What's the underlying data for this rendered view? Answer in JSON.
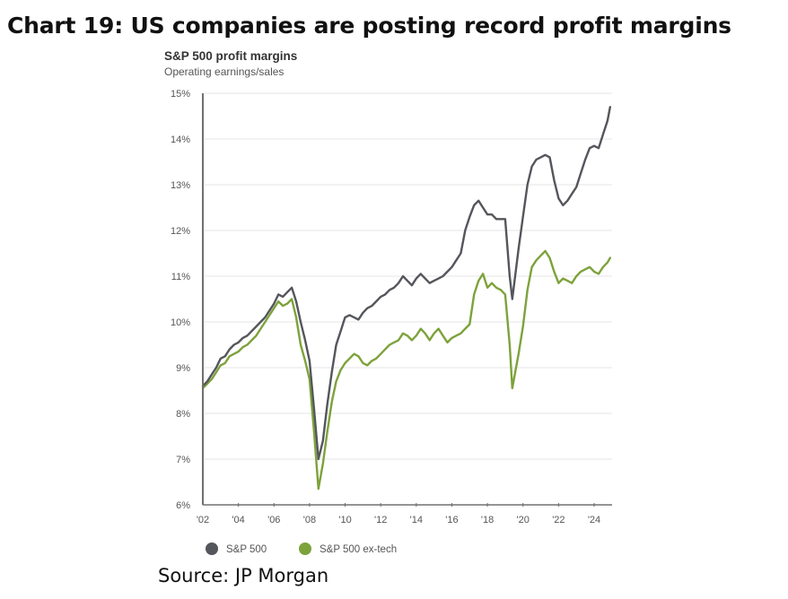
{
  "page": {
    "headline": "Chart 19: US companies are posting record profit margins",
    "source": "Source: JP Morgan"
  },
  "chart_data": {
    "type": "line",
    "title": "S&P 500 profit margins",
    "subtitle": "Operating earnings/sales",
    "xlabel": "",
    "ylabel": "",
    "xlim": [
      2002,
      2025
    ],
    "ylim": [
      6,
      15
    ],
    "grid": true,
    "legend_position": "bottom-left",
    "x_ticks": [
      2002,
      2004,
      2006,
      2008,
      2010,
      2012,
      2014,
      2016,
      2018,
      2020,
      2022,
      2024
    ],
    "x_tick_labels": [
      "'02",
      "'04",
      "'06",
      "'08",
      "'10",
      "'12",
      "'14",
      "'16",
      "'18",
      "'20",
      "'22",
      "'24"
    ],
    "y_ticks": [
      6,
      7,
      8,
      9,
      10,
      11,
      12,
      13,
      14,
      15
    ],
    "y_tick_labels": [
      "6%",
      "7%",
      "8%",
      "9%",
      "10%",
      "11%",
      "12%",
      "13%",
      "14%",
      "15%"
    ],
    "series": [
      {
        "name": "S&P 500",
        "color": "#54565b",
        "x": [
          2002.0,
          2002.25,
          2002.5,
          2002.75,
          2003.0,
          2003.25,
          2003.5,
          2003.75,
          2004.0,
          2004.25,
          2004.5,
          2004.75,
          2005.0,
          2005.25,
          2005.5,
          2005.75,
          2006.0,
          2006.25,
          2006.5,
          2006.75,
          2007.0,
          2007.25,
          2007.5,
          2007.75,
          2008.0,
          2008.25,
          2008.5,
          2008.75,
          2009.0,
          2009.25,
          2009.5,
          2009.75,
          2010.0,
          2010.25,
          2010.5,
          2010.75,
          2011.0,
          2011.25,
          2011.5,
          2011.75,
          2012.0,
          2012.25,
          2012.5,
          2012.75,
          2013.0,
          2013.25,
          2013.5,
          2013.75,
          2014.0,
          2014.25,
          2014.5,
          2014.75,
          2015.0,
          2015.25,
          2015.5,
          2015.75,
          2016.0,
          2016.25,
          2016.5,
          2016.75,
          2017.0,
          2017.25,
          2017.5,
          2017.75,
          2018.0,
          2018.25,
          2018.5,
          2018.75,
          2019.0,
          2019.25,
          2019.4,
          2019.75,
          2020.0,
          2020.25,
          2020.5,
          2020.75,
          2021.0,
          2021.25,
          2021.5,
          2021.75,
          2022.0,
          2022.25,
          2022.5,
          2022.75,
          2023.0,
          2023.25,
          2023.5,
          2023.75,
          2024.0,
          2024.25,
          2024.5,
          2024.75,
          2024.9
        ],
        "values": [
          8.6,
          8.7,
          8.85,
          9.0,
          9.2,
          9.25,
          9.4,
          9.5,
          9.55,
          9.65,
          9.7,
          9.8,
          9.9,
          10.0,
          10.1,
          10.25,
          10.4,
          10.6,
          10.55,
          10.65,
          10.75,
          10.45,
          10.0,
          9.6,
          9.15,
          8.1,
          7.0,
          7.4,
          8.2,
          8.9,
          9.5,
          9.8,
          10.1,
          10.15,
          10.1,
          10.05,
          10.2,
          10.3,
          10.35,
          10.45,
          10.55,
          10.6,
          10.7,
          10.75,
          10.85,
          11.0,
          10.9,
          10.8,
          10.95,
          11.05,
          10.95,
          10.85,
          10.9,
          10.95,
          11.0,
          11.1,
          11.2,
          11.35,
          11.5,
          12.0,
          12.3,
          12.55,
          12.65,
          12.5,
          12.35,
          12.35,
          12.25,
          12.25,
          12.25,
          11.0,
          10.5,
          11.6,
          12.3,
          13.0,
          13.4,
          13.55,
          13.6,
          13.65,
          13.6,
          13.1,
          12.7,
          12.55,
          12.65,
          12.8,
          12.95,
          13.25,
          13.55,
          13.8,
          13.85,
          13.8,
          14.1,
          14.4,
          14.7
        ]
      },
      {
        "name": "S&P 500 ex-tech",
        "color": "#7da23b",
        "x": [
          2002.0,
          2002.25,
          2002.5,
          2002.75,
          2003.0,
          2003.25,
          2003.5,
          2003.75,
          2004.0,
          2004.25,
          2004.5,
          2004.75,
          2005.0,
          2005.25,
          2005.5,
          2005.75,
          2006.0,
          2006.25,
          2006.5,
          2006.75,
          2007.0,
          2007.25,
          2007.5,
          2007.75,
          2008.0,
          2008.25,
          2008.5,
          2008.75,
          2009.0,
          2009.25,
          2009.5,
          2009.75,
          2010.0,
          2010.25,
          2010.5,
          2010.75,
          2011.0,
          2011.25,
          2011.5,
          2011.75,
          2012.0,
          2012.25,
          2012.5,
          2012.75,
          2013.0,
          2013.25,
          2013.5,
          2013.75,
          2014.0,
          2014.25,
          2014.5,
          2014.75,
          2015.0,
          2015.25,
          2015.5,
          2015.75,
          2016.0,
          2016.25,
          2016.5,
          2016.75,
          2017.0,
          2017.25,
          2017.5,
          2017.75,
          2018.0,
          2018.25,
          2018.5,
          2018.75,
          2019.0,
          2019.25,
          2019.4,
          2019.75,
          2020.0,
          2020.25,
          2020.5,
          2020.75,
          2021.0,
          2021.25,
          2021.5,
          2021.75,
          2022.0,
          2022.25,
          2022.5,
          2022.75,
          2023.0,
          2023.25,
          2023.5,
          2023.75,
          2024.0,
          2024.25,
          2024.5,
          2024.75,
          2024.9
        ],
        "values": [
          8.55,
          8.65,
          8.75,
          8.9,
          9.05,
          9.1,
          9.25,
          9.3,
          9.35,
          9.45,
          9.5,
          9.6,
          9.7,
          9.85,
          10.0,
          10.15,
          10.3,
          10.45,
          10.35,
          10.4,
          10.5,
          10.1,
          9.5,
          9.15,
          8.75,
          7.6,
          6.35,
          6.9,
          7.6,
          8.25,
          8.7,
          8.95,
          9.1,
          9.2,
          9.3,
          9.25,
          9.1,
          9.05,
          9.15,
          9.2,
          9.3,
          9.4,
          9.5,
          9.55,
          9.6,
          9.75,
          9.7,
          9.6,
          9.7,
          9.85,
          9.75,
          9.6,
          9.75,
          9.85,
          9.7,
          9.55,
          9.65,
          9.7,
          9.75,
          9.85,
          9.95,
          10.6,
          10.9,
          11.05,
          10.75,
          10.85,
          10.75,
          10.7,
          10.6,
          9.5,
          8.55,
          9.3,
          9.9,
          10.7,
          11.2,
          11.35,
          11.45,
          11.55,
          11.4,
          11.1,
          10.85,
          10.95,
          10.9,
          10.85,
          11.0,
          11.1,
          11.15,
          11.2,
          11.1,
          11.05,
          11.2,
          11.3,
          11.4
        ]
      }
    ]
  }
}
